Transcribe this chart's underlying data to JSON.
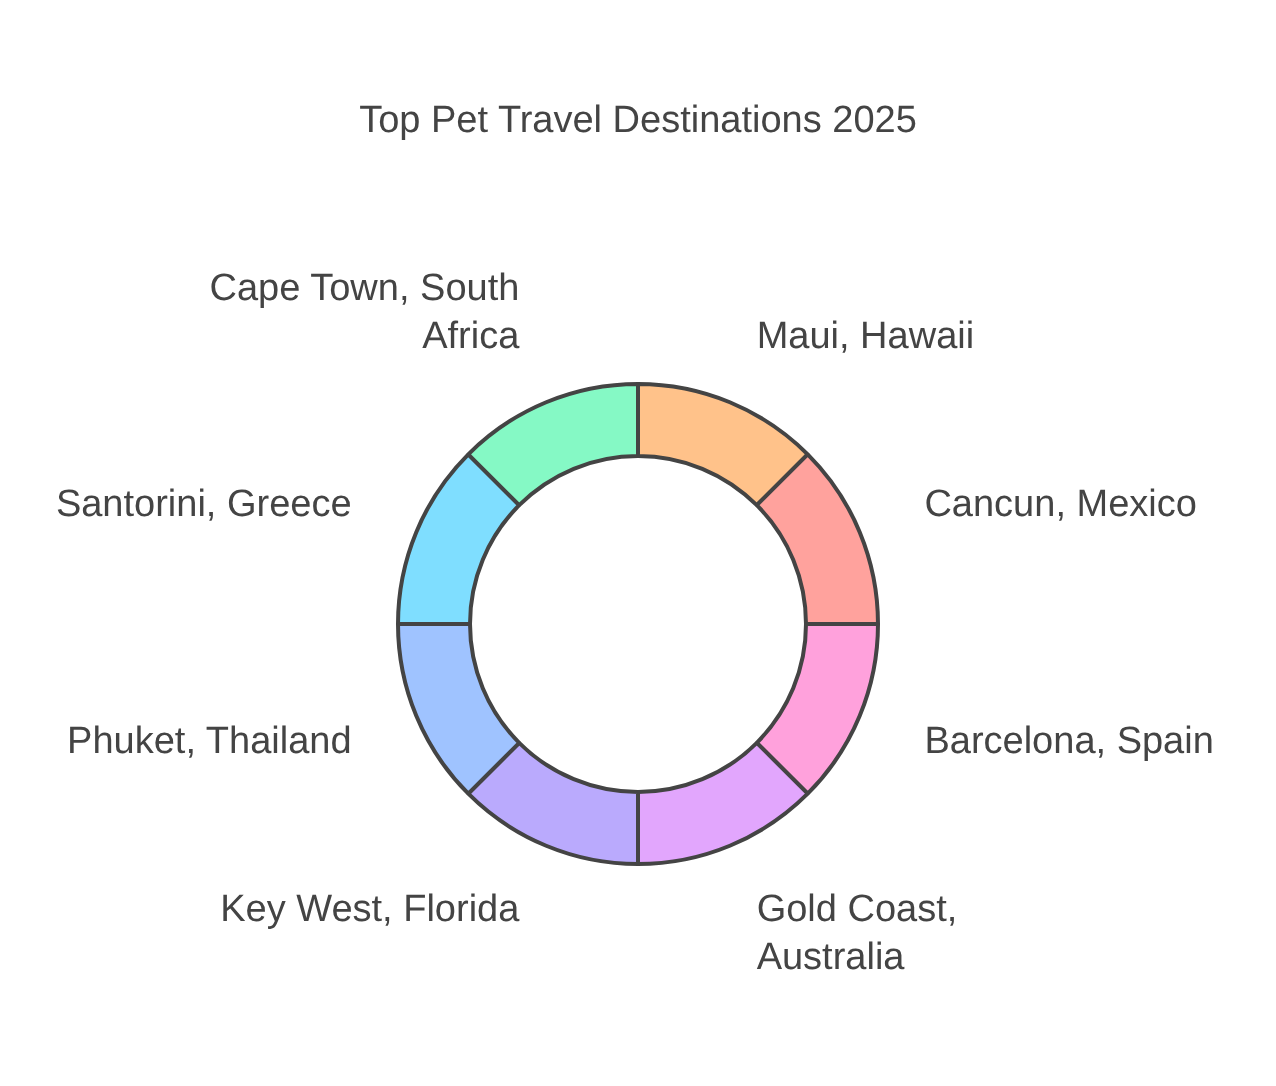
{
  "chart_data": {
    "type": "donut",
    "title": "Top Pet Travel Destinations 2025",
    "categories": [
      "Maui, Hawaii",
      "Cancun, Mexico",
      "Barcelona, Spain",
      "Gold Coast, Australia",
      "Key West, Florida",
      "Phuket, Thailand",
      "Santorini, Greece",
      "Cape Town, South Africa"
    ],
    "values": [
      12.5,
      12.5,
      12.5,
      12.5,
      12.5,
      12.5,
      12.5,
      12.5
    ],
    "colors": [
      "#ffc28a",
      "#ffa29d",
      "#ffa1dc",
      "#e2a6fd",
      "#baaafd",
      "#9fc3ff",
      "#7fdeff",
      "#85f9c5"
    ]
  }
}
